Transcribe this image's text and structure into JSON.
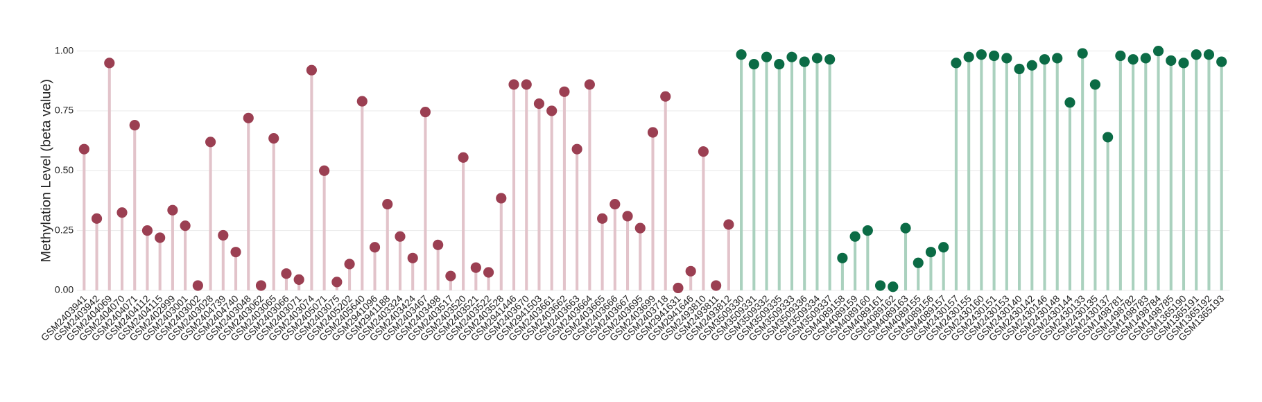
{
  "chart_data": {
    "type": "lollipop",
    "y_label": "Methylation Level (beta value)",
    "ylim": [
      0,
      1
    ],
    "yticks": [
      {
        "value": 0,
        "label": "0.00"
      },
      {
        "value": 0.25,
        "label": "0.25"
      },
      {
        "value": 0.5,
        "label": "0.50"
      },
      {
        "value": 0.75,
        "label": "0.75"
      },
      {
        "value": 1,
        "label": "1.00"
      }
    ],
    "grid": true,
    "series": [
      {
        "color": "#9b3f52",
        "stem_color": "#e2c3ca",
        "categories": [
          "GSM2403941",
          "GSM2403942",
          "GSM2404069",
          "GSM2404070",
          "GSM2404071",
          "GSM2404112",
          "GSM2404115",
          "GSM2402999",
          "GSM2403001",
          "GSM2403002",
          "GSM2403028",
          "GSM2404739",
          "GSM2404740",
          "GSM2403048",
          "GSM2403062",
          "GSM2403065",
          "GSM2403066",
          "GSM2403071",
          "GSM2403074",
          "GSM2405071",
          "GSM2403075",
          "GSM2405202",
          "GSM2405640",
          "GSM2941096",
          "GSM2941188",
          "GSM2403324",
          "GSM2403424",
          "GSM2403467",
          "GSM2403498",
          "GSM2403517",
          "GSM2403520",
          "GSM2403521",
          "GSM2403522",
          "GSM2403528",
          "GSM2941446",
          "GSM2403670",
          "GSM2941503",
          "GSM2403661",
          "GSM2403662",
          "GSM2403663",
          "GSM2403664",
          "GSM2403665",
          "GSM2403666",
          "GSM2403667",
          "GSM2403695",
          "GSM2403699",
          "GSM2403718",
          "GSM2941631",
          "GSM2941646",
          "GSM2493810",
          "GSM2493811",
          "GSM2493812"
        ],
        "values": [
          0.59,
          0.3,
          0.95,
          0.325,
          0.69,
          0.25,
          0.22,
          0.335,
          0.27,
          0.02,
          0.62,
          0.23,
          0.16,
          0.72,
          0.02,
          0.635,
          0.07,
          0.045,
          0.92,
          0.5,
          0.035,
          0.11,
          0.79,
          0.18,
          0.36,
          0.225,
          0.135,
          0.745,
          0.19,
          0.06,
          0.555,
          0.095,
          0.075,
          0.385,
          0.86,
          0.86,
          0.78,
          0.75,
          0.83,
          0.59,
          0.86,
          0.3,
          0.36,
          0.31,
          0.26,
          0.66,
          0.81,
          0.01,
          0.08,
          0.58,
          0.02,
          0.275
        ]
      },
      {
        "color": "#0b6b45",
        "stem_color": "#aad1be",
        "categories": [
          "GSM3509330",
          "GSM3509331",
          "GSM3509332",
          "GSM3509335",
          "GSM3509333",
          "GSM3509336",
          "GSM3509334",
          "GSM3509337",
          "GSM4089158",
          "GSM4089159",
          "GSM4089160",
          "GSM4089161",
          "GSM4089162",
          "GSM4089163",
          "GSM4089155",
          "GSM4089156",
          "GSM4089157",
          "GSM2430157",
          "GSM2430155",
          "GSM2430160",
          "GSM2430151",
          "GSM2430153",
          "GSM2430140",
          "GSM2430142",
          "GSM2430146",
          "GSM2430148",
          "GSM2430144",
          "GSM2430133",
          "GSM2430135",
          "GSM2430137",
          "GSM1498781",
          "GSM1498782",
          "GSM1498783",
          "GSM1498784",
          "GSM1498785",
          "GSM1365190",
          "GSM1365191",
          "GSM1365192",
          "GSM1365193"
        ],
        "values": [
          0.985,
          0.945,
          0.975,
          0.945,
          0.975,
          0.955,
          0.97,
          0.965,
          0.135,
          0.225,
          0.25,
          0.02,
          0.015,
          0.26,
          0.115,
          0.16,
          0.18,
          0.95,
          0.975,
          0.985,
          0.98,
          0.97,
          0.925,
          0.94,
          0.965,
          0.97,
          0.785,
          0.99,
          0.86,
          0.64,
          0.98,
          0.965,
          0.97,
          1.0,
          0.96,
          0.95,
          0.985,
          0.985,
          0.955
        ]
      }
    ]
  }
}
